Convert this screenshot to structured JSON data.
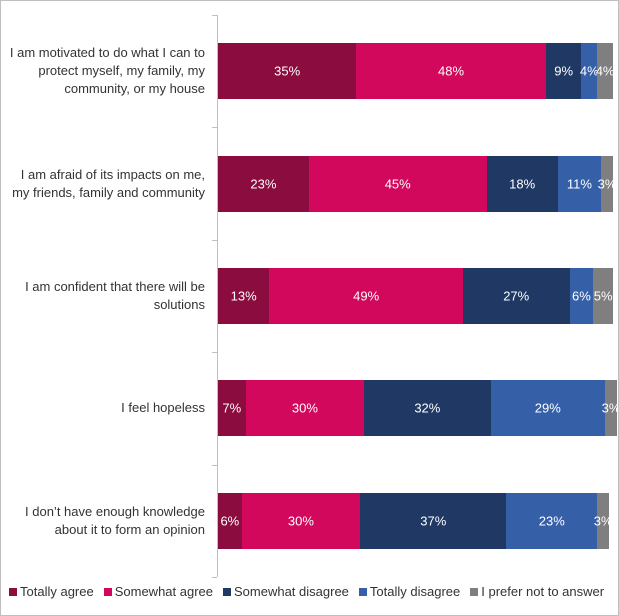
{
  "chart_data": {
    "type": "stacked-bar",
    "orientation": "horizontal",
    "categories": [
      "I am motivated to do what I can to protect myself, my family, my community, or my house",
      "I am afraid of its impacts on me, my friends, family and community",
      "I am confident that there will be solutions",
      "I feel hopeless",
      "I don’t have enough knowledge about it to form an opinion"
    ],
    "series": [
      {
        "name": "Totally agree",
        "color": "#8b0c3e",
        "values": [
          35,
          23,
          13,
          7,
          6
        ],
        "value_labels": [
          "35%",
          "23%",
          "13%",
          "7%",
          "6%"
        ]
      },
      {
        "name": "Somewhat agree",
        "color": "#d2085c",
        "values": [
          48,
          45,
          49,
          30,
          30
        ],
        "value_labels": [
          "48%",
          "45%",
          "49%",
          "30%",
          "30%"
        ]
      },
      {
        "name": "Somewhat disagree",
        "color": "#1f3864",
        "values": [
          9,
          18,
          27,
          32,
          37
        ],
        "value_labels": [
          "9%",
          "18%",
          "27%",
          "32%",
          "37%"
        ]
      },
      {
        "name": "Totally disagree",
        "color": "#3560a8",
        "values": [
          4,
          11,
          6,
          29,
          23
        ],
        "value_labels": [
          "4%",
          "11%",
          "6%",
          "29%",
          "23%"
        ]
      },
      {
        "name": "I prefer not to answer",
        "color": "#7f7f7f",
        "values": [
          4,
          3,
          5,
          3,
          3
        ],
        "value_labels": [
          "4%",
          "3%",
          "5%",
          "3%",
          "3%"
        ]
      }
    ],
    "legend": "bottom"
  }
}
